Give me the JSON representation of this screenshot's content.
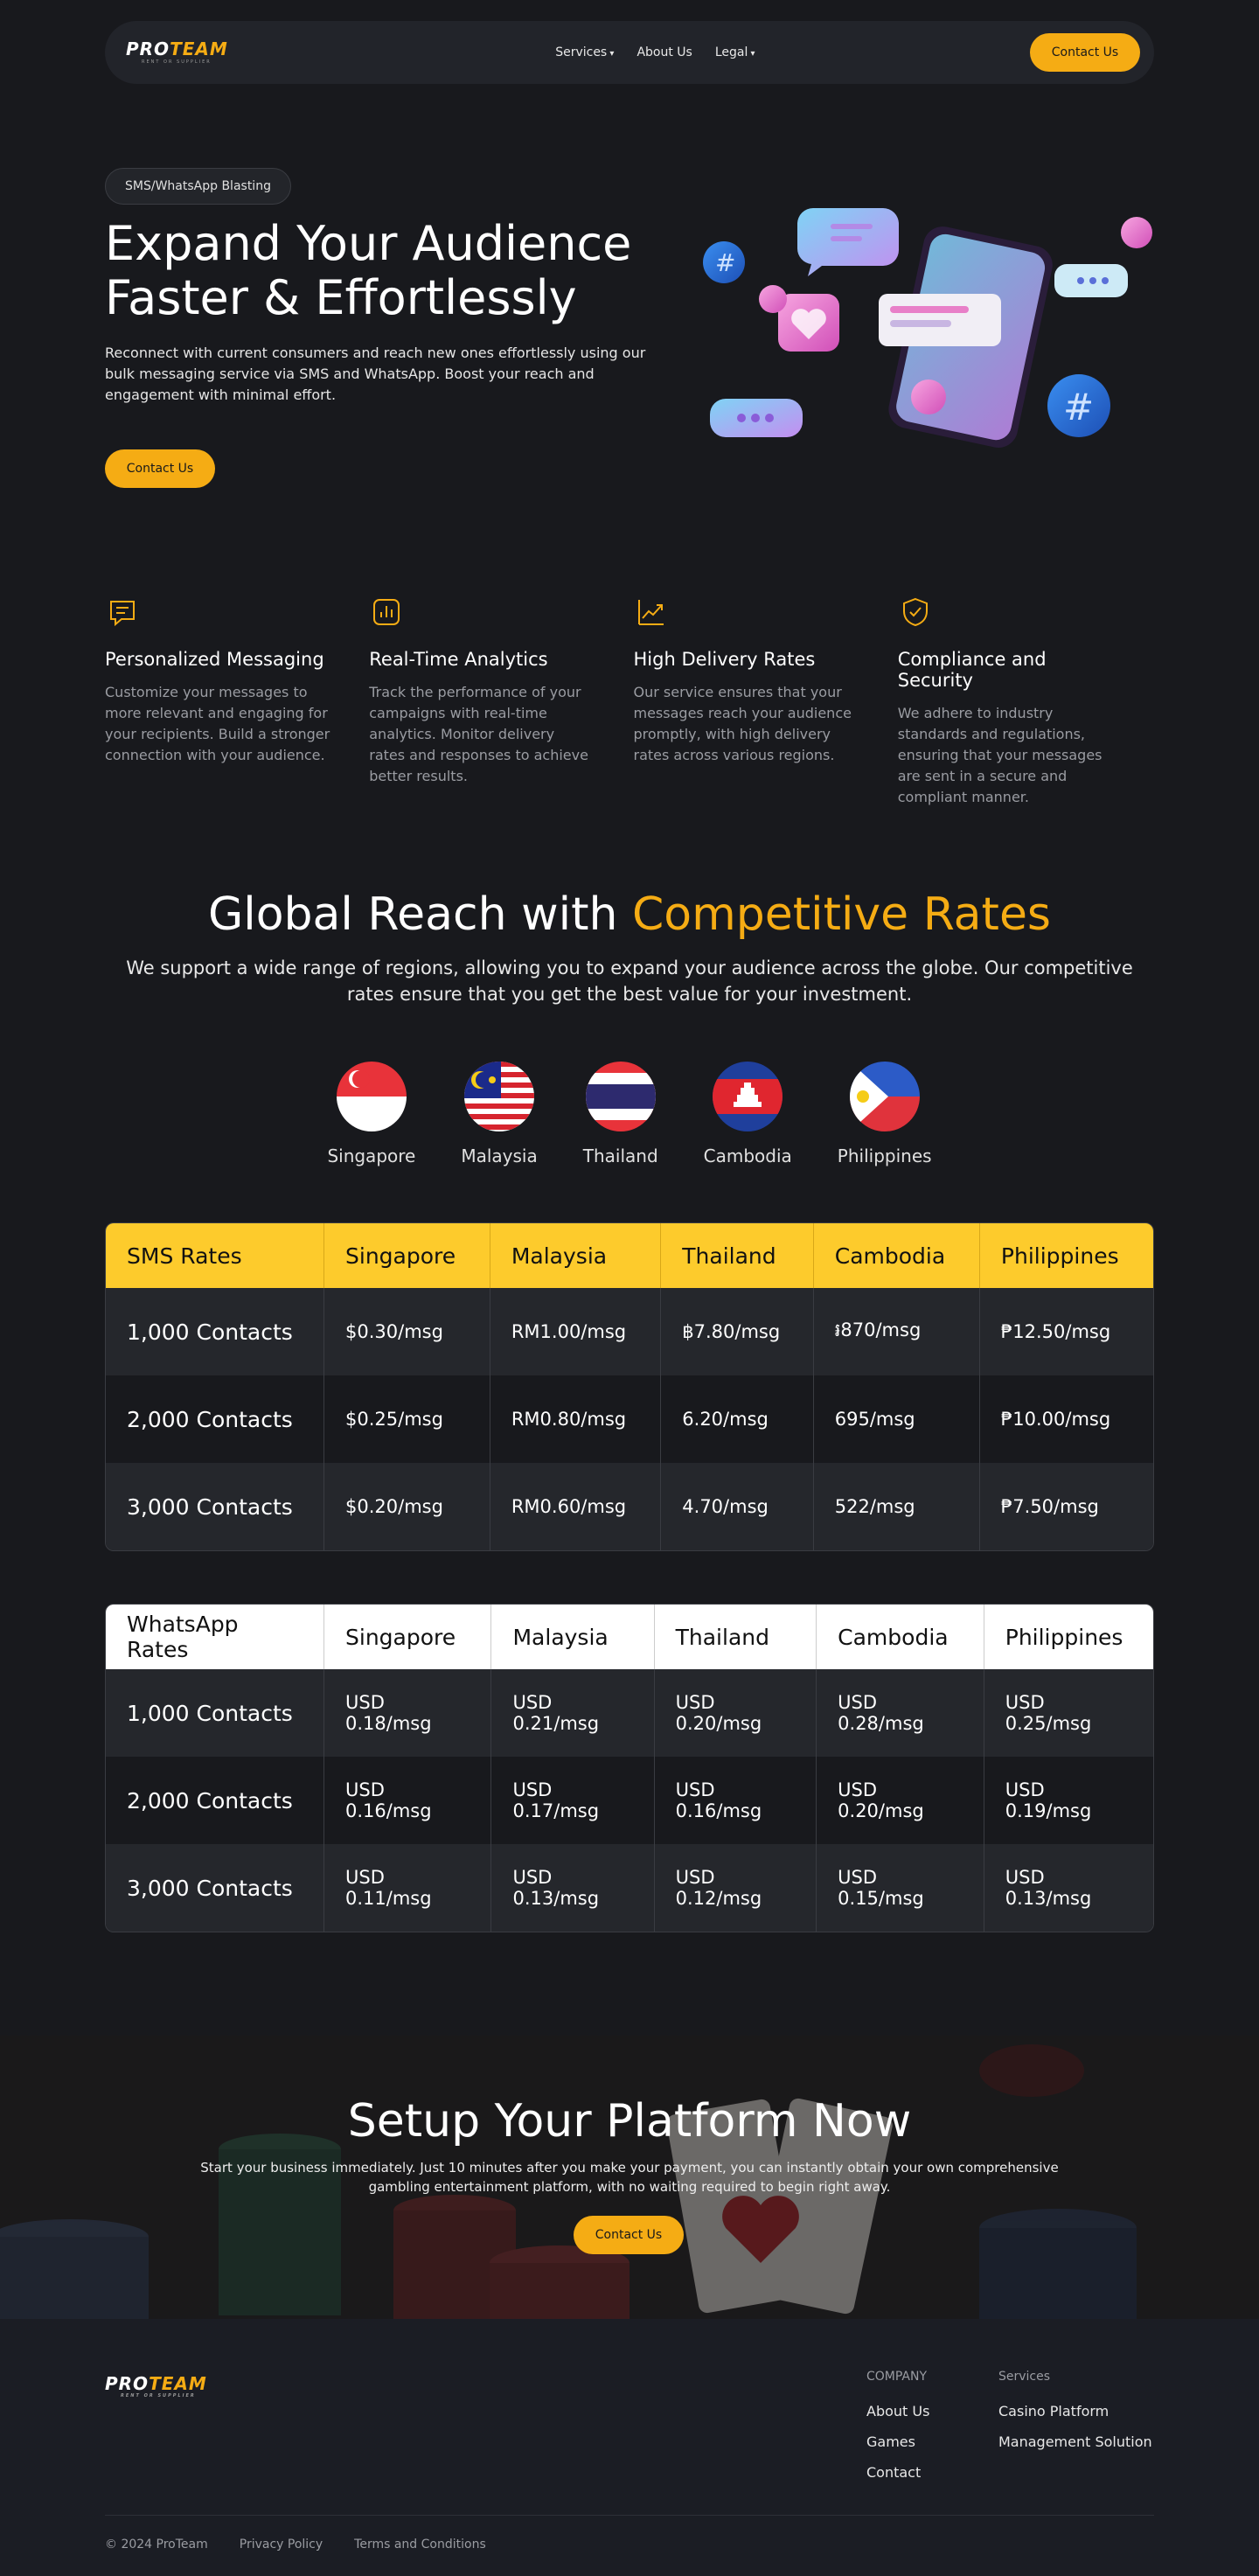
{
  "nav": {
    "logo_pro": "PRO",
    "logo_team": "TEAM",
    "logo_sub": "RENT OR SUPPLIER",
    "links": [
      "Services",
      "About Us",
      "Legal"
    ],
    "cta": "Contact Us"
  },
  "hero": {
    "tag": "SMS/WhatsApp Blasting",
    "title": "Expand Your Audience Faster & Effortlessly",
    "description": "Reconnect with current consumers and reach new ones effortlessly using our bulk messaging service via SMS and WhatsApp. Boost your reach and engagement with minimal effort.",
    "cta": "Contact Us"
  },
  "features": [
    {
      "icon": "message-icon",
      "title": "Personalized Messaging",
      "text": "Customize your messages to more relevant and engaging for your recipients. Build a stronger connection with your audience."
    },
    {
      "icon": "analytics-icon",
      "title": "Real-Time Analytics",
      "text": "Track the performance of your campaigns with real-time analytics. Monitor delivery rates and responses to achieve better results."
    },
    {
      "icon": "trend-up-icon",
      "title": "High Delivery Rates",
      "text": "Our service ensures that your messages reach your audience promptly, with high delivery rates across various regions."
    },
    {
      "icon": "shield-check-icon",
      "title": "Compliance and Security",
      "text": "We adhere to industry standards and regulations, ensuring that your messages are sent in a secure and compliant manner."
    }
  ],
  "reach": {
    "title_plain": "Global Reach with ",
    "title_accent": "Competitive Rates",
    "description": "We support a wide range of regions, allowing you to expand your audience across the globe. Our competitive rates ensure that you get the best value for your investment.",
    "countries": [
      "Singapore",
      "Malaysia",
      "Thailand",
      "Cambodia",
      "Philippines"
    ]
  },
  "sms_table": {
    "header": [
      "SMS Rates",
      "Singapore",
      "Malaysia",
      "Thailand",
      "Cambodia",
      "Philippines"
    ],
    "rows": [
      [
        "1,000 Contacts",
        "$0.30/msg",
        "RM1.00/msg",
        "฿7.80/msg",
        "៛870/msg",
        "₱12.50/msg"
      ],
      [
        "2,000 Contacts",
        "$0.25/msg",
        "RM0.80/msg",
        "6.20/msg",
        "695/msg",
        "₱10.00/msg"
      ],
      [
        "3,000 Contacts",
        "$0.20/msg",
        "RM0.60/msg",
        "4.70/msg",
        "522/msg",
        "₱7.50/msg"
      ]
    ]
  },
  "wa_table": {
    "header": [
      "WhatsApp Rates",
      "Singapore",
      "Malaysia",
      "Thailand",
      "Cambodia",
      "Philippines"
    ],
    "rows": [
      [
        "1,000 Contacts",
        "USD 0.18/msg",
        "USD 0.21/msg",
        "USD 0.20/msg",
        "USD 0.28/msg",
        "USD 0.25/msg"
      ],
      [
        "2,000 Contacts",
        "USD 0.16/msg",
        "USD 0.17/msg",
        "USD 0.16/msg",
        "USD 0.20/msg",
        "USD 0.19/msg"
      ],
      [
        "3,000 Contacts",
        "USD 0.11/msg",
        "USD 0.13/msg",
        "USD 0.12/msg",
        "USD 0.15/msg",
        "USD 0.13/msg"
      ]
    ]
  },
  "cta": {
    "title": "Setup Your Platform Now",
    "description": "Start your business immediately. Just 10 minutes after you make your payment, you can instantly obtain your own comprehensive gambling entertainment platform, with no waiting required to begin right away.",
    "button": "Contact Us"
  },
  "footer": {
    "company_heading": "COMPANY",
    "company_links": [
      "About Us",
      "Games",
      "Contact"
    ],
    "services_heading": "Services",
    "services_links": [
      "Casino Platform",
      "Management Solution"
    ],
    "copyright": "© 2024 ProTeam",
    "privacy": "Privacy Policy",
    "terms": "Terms and Conditions"
  },
  "colors": {
    "accent": "#f5ac14",
    "background": "#18191d",
    "table_header": "#fdcb2c"
  }
}
